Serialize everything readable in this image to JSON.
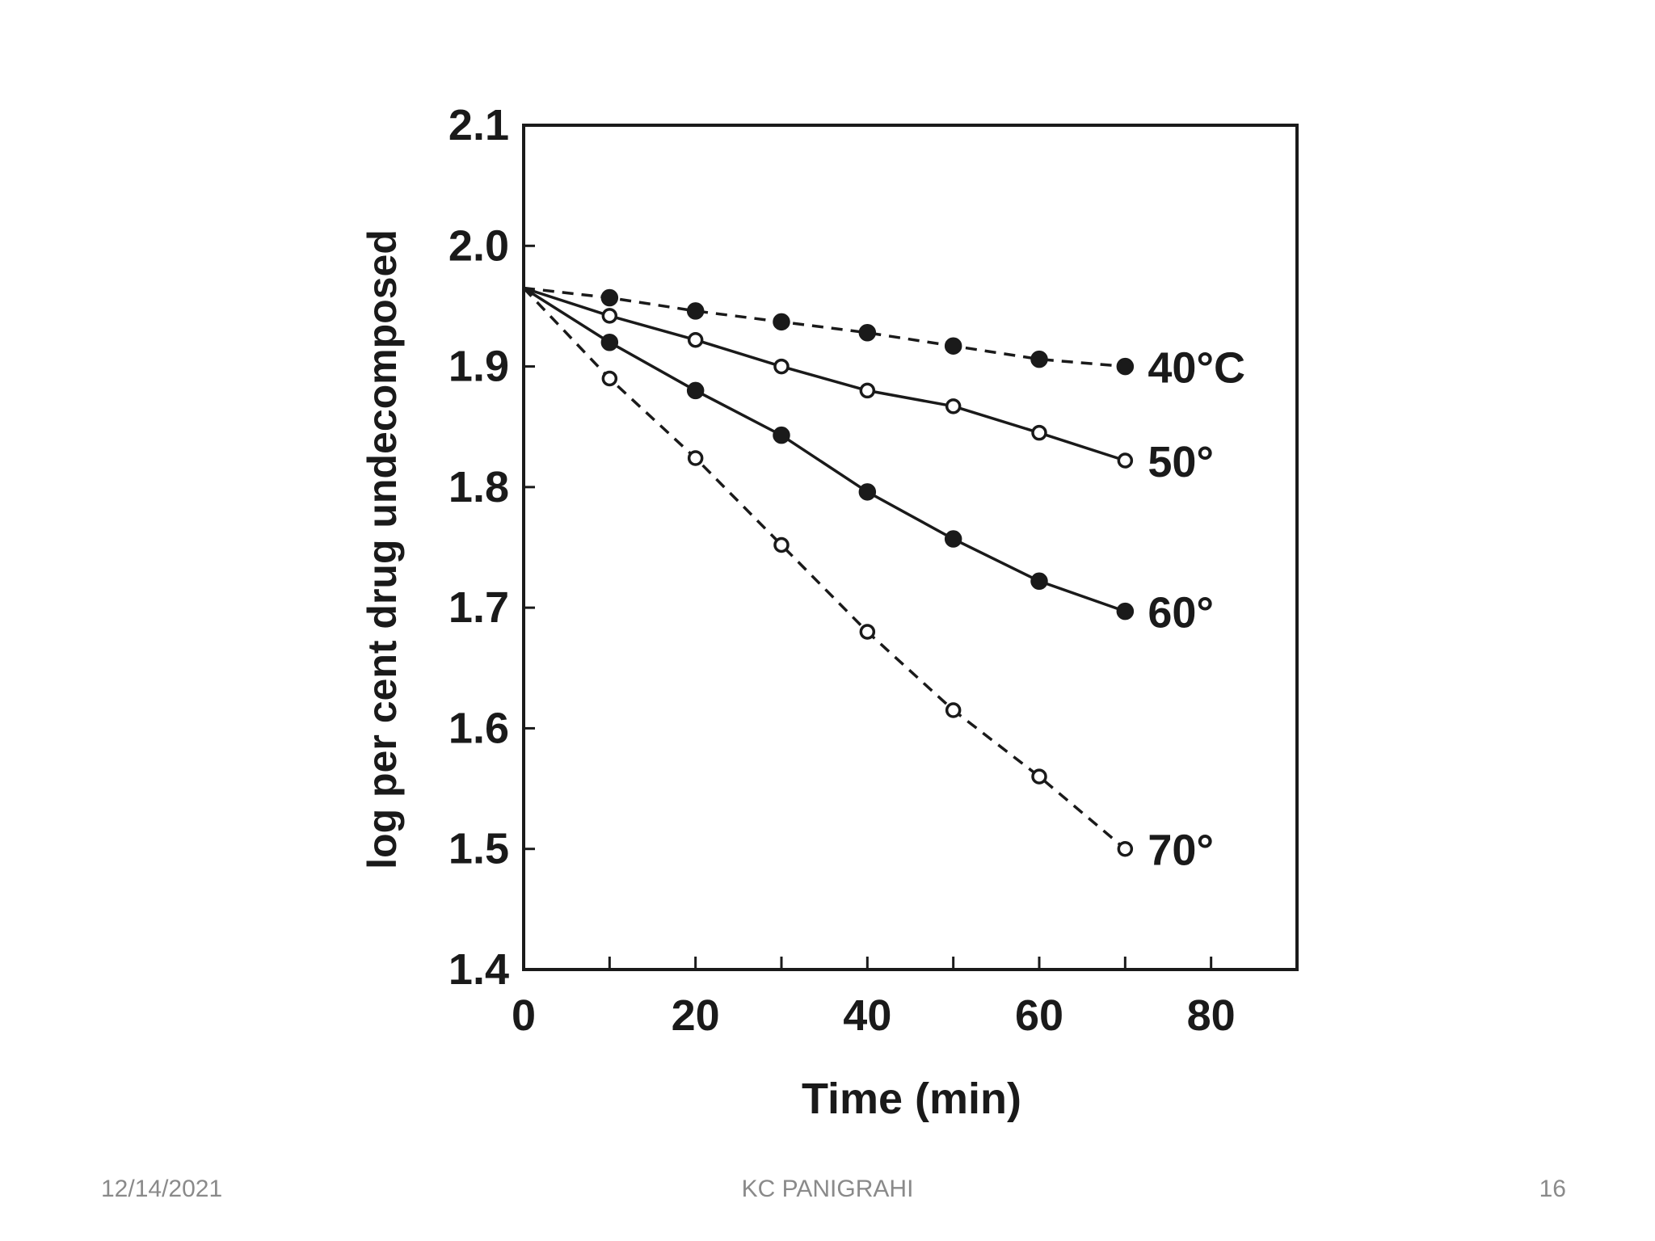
{
  "chart_data": {
    "type": "line",
    "title": "",
    "xlabel": "Time (min)",
    "ylabel": "log per cent drug undecomposed",
    "xlim": [
      0,
      90
    ],
    "ylim": [
      1.4,
      2.1
    ],
    "xticks": [
      0,
      20,
      40,
      60,
      80
    ],
    "xtick_labels": [
      "0",
      "20",
      "40",
      "60",
      "80"
    ],
    "yticks": [
      1.4,
      1.5,
      1.6,
      1.7,
      1.8,
      1.9,
      2.0,
      2.1
    ],
    "ytick_labels": [
      "1.4",
      "1.5",
      "1.6",
      "1.7",
      "1.8",
      "1.9",
      "2.0",
      "2.1"
    ],
    "grid": false,
    "series": [
      {
        "name": "40°C",
        "marker": "filled",
        "line": "dashed",
        "x": [
          0,
          10,
          20,
          30,
          40,
          50,
          60,
          70
        ],
        "y": [
          1.965,
          1.957,
          1.946,
          1.937,
          1.928,
          1.917,
          1.906,
          1.9
        ]
      },
      {
        "name": "50°",
        "marker": "open",
        "line": "solid",
        "x": [
          0,
          10,
          20,
          30,
          40,
          50,
          60,
          70
        ],
        "y": [
          1.965,
          1.942,
          1.922,
          1.9,
          1.88,
          1.867,
          1.845,
          1.822
        ]
      },
      {
        "name": "60°",
        "marker": "filled",
        "line": "solid",
        "x": [
          0,
          10,
          20,
          30,
          40,
          50,
          60,
          70
        ],
        "y": [
          1.965,
          1.92,
          1.88,
          1.843,
          1.796,
          1.757,
          1.722,
          1.697
        ]
      },
      {
        "name": "70°",
        "marker": "open",
        "line": "dashed",
        "x": [
          0,
          10,
          20,
          30,
          40,
          50,
          60,
          70
        ],
        "y": [
          1.965,
          1.89,
          1.824,
          1.752,
          1.68,
          1.615,
          1.56,
          1.5
        ]
      }
    ],
    "colors": {
      "ink": "#1a1a1a"
    }
  },
  "footer": {
    "date": "12/14/2021",
    "author": "KC PANIGRAHI",
    "page": "16"
  }
}
